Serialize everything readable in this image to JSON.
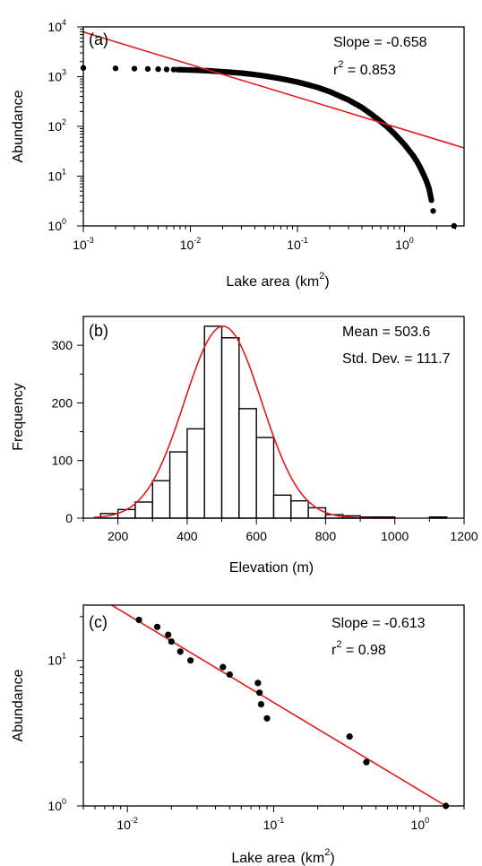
{
  "chart_data": [
    {
      "type": "scatter",
      "panel_label": "(a)",
      "xlabel": "Lake area",
      "xlabel_unit": "(km",
      "xlabel_unit_exp": "2",
      "xlabel_unit_close": ")",
      "ylabel": "Abundance",
      "x_scale": "log",
      "y_scale": "log",
      "xlim": [
        0.001,
        3.6
      ],
      "ylim": [
        1,
        10000
      ],
      "x_ticks": [
        {
          "base": "10",
          "exp": "-3",
          "value": 0.001
        },
        {
          "base": "10",
          "exp": "-2",
          "value": 0.01
        },
        {
          "base": "10",
          "exp": "-1",
          "value": 0.1
        },
        {
          "base": "10",
          "exp": "0",
          "value": 1
        }
      ],
      "y_ticks": [
        {
          "base": "10",
          "exp": "0",
          "value": 1
        },
        {
          "base": "10",
          "exp": "1",
          "value": 10
        },
        {
          "base": "10",
          "exp": "2",
          "value": 100
        },
        {
          "base": "10",
          "exp": "3",
          "value": 1000
        },
        {
          "base": "10",
          "exp": "4",
          "value": 10000
        }
      ],
      "annotations": {
        "slope": "Slope = -0.658",
        "r2_prefix": "r",
        "r2_exp": "2",
        "r2_value": " = 0.853"
      },
      "fit_line": {
        "color": "#e31a1c",
        "points": [
          [
            0.001,
            7900
          ],
          [
            3.6,
            37
          ]
        ]
      },
      "points_color": "#000000",
      "series_curve": [
        [
          0.001,
          1500
        ],
        [
          0.002,
          1470
        ],
        [
          0.003,
          1450
        ],
        [
          0.004,
          1430
        ],
        [
          0.005,
          1415
        ],
        [
          0.006,
          1400
        ],
        [
          0.007,
          1390
        ],
        [
          0.008,
          1380
        ],
        [
          0.009,
          1370
        ],
        [
          0.01,
          1360
        ],
        [
          0.012,
          1340
        ],
        [
          0.015,
          1310
        ],
        [
          0.02,
          1260
        ],
        [
          0.03,
          1180
        ],
        [
          0.04,
          1100
        ],
        [
          0.05,
          1030
        ],
        [
          0.07,
          910
        ],
        [
          0.1,
          780
        ],
        [
          0.15,
          620
        ],
        [
          0.2,
          500
        ],
        [
          0.3,
          340
        ],
        [
          0.4,
          240
        ],
        [
          0.5,
          170
        ],
        [
          0.6,
          125
        ],
        [
          0.7,
          95
        ],
        [
          0.8,
          72
        ],
        [
          0.9,
          55
        ],
        [
          1.0,
          43
        ],
        [
          1.1,
          33
        ],
        [
          1.2,
          26
        ],
        [
          1.3,
          20
        ],
        [
          1.4,
          15
        ],
        [
          1.5,
          11
        ],
        [
          1.6,
          8
        ],
        [
          1.7,
          5.5
        ],
        [
          1.75,
          4
        ],
        [
          1.8,
          3
        ]
      ],
      "outlier_points": [
        [
          1.85,
          2.0
        ],
        [
          2.9,
          1.0
        ]
      ]
    },
    {
      "type": "histogram",
      "panel_label": "(b)",
      "xlabel": "Elevation (m)",
      "ylabel": "Frequency",
      "xlim": [
        100,
        1200
      ],
      "ylim": [
        0,
        350
      ],
      "x_ticks": [
        200,
        400,
        600,
        800,
        1000,
        1200
      ],
      "y_ticks": [
        0,
        100,
        200,
        300
      ],
      "bin_width": 50,
      "bins": [
        {
          "start": 150,
          "count": 8
        },
        {
          "start": 200,
          "count": 15
        },
        {
          "start": 250,
          "count": 28
        },
        {
          "start": 300,
          "count": 65
        },
        {
          "start": 350,
          "count": 115
        },
        {
          "start": 400,
          "count": 155
        },
        {
          "start": 450,
          "count": 333
        },
        {
          "start": 500,
          "count": 313
        },
        {
          "start": 550,
          "count": 190
        },
        {
          "start": 600,
          "count": 140
        },
        {
          "start": 650,
          "count": 40
        },
        {
          "start": 700,
          "count": 30
        },
        {
          "start": 750,
          "count": 18
        },
        {
          "start": 800,
          "count": 6
        },
        {
          "start": 850,
          "count": 4
        },
        {
          "start": 900,
          "count": 2
        },
        {
          "start": 950,
          "count": 2
        },
        {
          "start": 1100,
          "count": 2
        }
      ],
      "annotations": {
        "mean": "Mean = 503.6",
        "std": "Std. Dev. = 111.7"
      },
      "normal_curve": {
        "color": "#e31a1c",
        "mean": 503.6,
        "std": 111.7,
        "peak": 333
      }
    },
    {
      "type": "scatter",
      "panel_label": "(c)",
      "xlabel": "Lake area",
      "xlabel_unit": "(km",
      "xlabel_unit_exp": "2",
      "xlabel_unit_close": ")",
      "ylabel": "Abundance",
      "x_scale": "log",
      "y_scale": "log",
      "xlim": [
        0.005,
        2.0
      ],
      "ylim": [
        1,
        24
      ],
      "x_ticks": [
        {
          "base": "10",
          "exp": "-2",
          "value": 0.01
        },
        {
          "base": "10",
          "exp": "-1",
          "value": 0.1
        },
        {
          "base": "10",
          "exp": "0",
          "value": 1
        }
      ],
      "y_ticks": [
        {
          "base": "10",
          "exp": "0",
          "value": 1
        },
        {
          "base": "10",
          "exp": "1",
          "value": 10
        }
      ],
      "annotations": {
        "slope": "Slope = -0.613",
        "r2_prefix": "r",
        "r2_exp": "2",
        "r2_value": " = 0.98"
      },
      "fit_line": {
        "color": "#e31a1c",
        "points": [
          [
            0.0078,
            24
          ],
          [
            1.5,
            1
          ]
        ]
      },
      "points": [
        [
          0.012,
          19
        ],
        [
          0.016,
          17
        ],
        [
          0.019,
          15
        ],
        [
          0.02,
          13.5
        ],
        [
          0.023,
          11.5
        ],
        [
          0.027,
          10
        ],
        [
          0.045,
          9
        ],
        [
          0.05,
          8
        ],
        [
          0.078,
          7
        ],
        [
          0.08,
          6
        ],
        [
          0.082,
          5
        ],
        [
          0.09,
          4
        ],
        [
          0.33,
          3
        ],
        [
          0.43,
          2
        ],
        [
          1.5,
          1
        ]
      ]
    }
  ]
}
